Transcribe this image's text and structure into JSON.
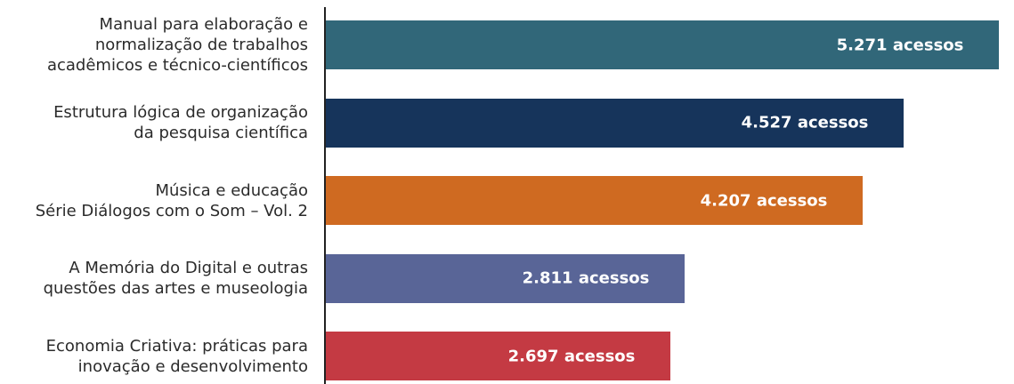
{
  "chart_data": {
    "type": "bar",
    "orientation": "horizontal",
    "title": "",
    "xlabel": "",
    "ylabel": "",
    "grid": false,
    "xlim": [
      0,
      5271
    ],
    "categories": [
      [
        "Manual para elaboração e",
        "normalização de trabalhos",
        "acadêmicos e técnico-científicos"
      ],
      [
        "Estrutura lógica de organização",
        "da pesquisa científica"
      ],
      [
        "Música e educação",
        "Série Diálogos com o Som – Vol. 2"
      ],
      [
        "A Memória do Digital e outras",
        "questões das artes e museologia"
      ],
      [
        "Economia Criativa: práticas para",
        "inovação e desenvolvimento"
      ]
    ],
    "values": [
      5271,
      4527,
      4207,
      2811,
      2697
    ],
    "data_labels": [
      "5.271 acessos",
      "4.527 acessos",
      "4.207 acessos",
      "2.811 acessos",
      "2.697 acessos"
    ],
    "colors": [
      "#316779",
      "#16345b",
      "#cf6a21",
      "#596597",
      "#c43a43"
    ]
  }
}
